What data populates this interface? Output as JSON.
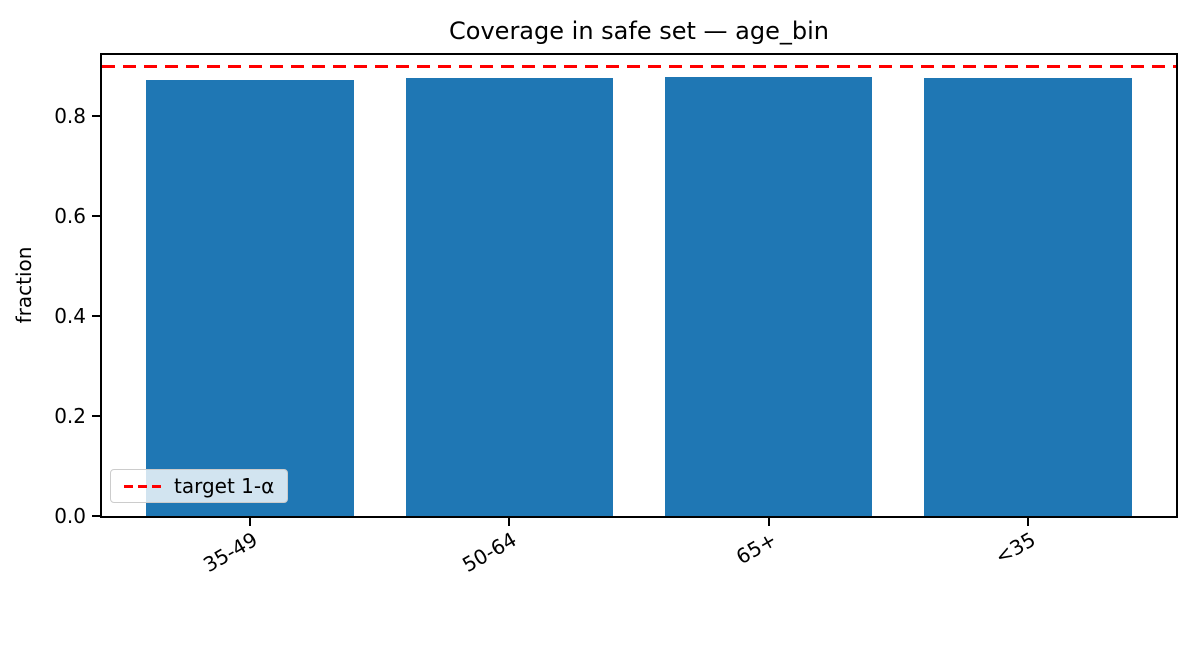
{
  "figure": {
    "background": "#ffffff"
  },
  "chart_data": {
    "type": "bar",
    "title": "Coverage in safe set — age_bin",
    "xlabel": "",
    "ylabel": "fraction",
    "categories": [
      "35-49",
      "50-64",
      "65+",
      "<35"
    ],
    "values": [
      0.873,
      0.877,
      0.878,
      0.877
    ],
    "bar_color": "#1f77b4",
    "ylim": [
      0,
      0.922
    ],
    "yticks": [
      "0.0",
      "0.2",
      "0.4",
      "0.6",
      "0.8"
    ],
    "grid": false,
    "target_line": {
      "value": 0.9,
      "color": "#ff0000",
      "style": "dashed",
      "label": "target 1-α"
    },
    "legend": {
      "position": "lower-left",
      "entries": [
        {
          "label": "target 1-α",
          "color": "#ff0000",
          "line_style": "dashed"
        }
      ]
    }
  }
}
